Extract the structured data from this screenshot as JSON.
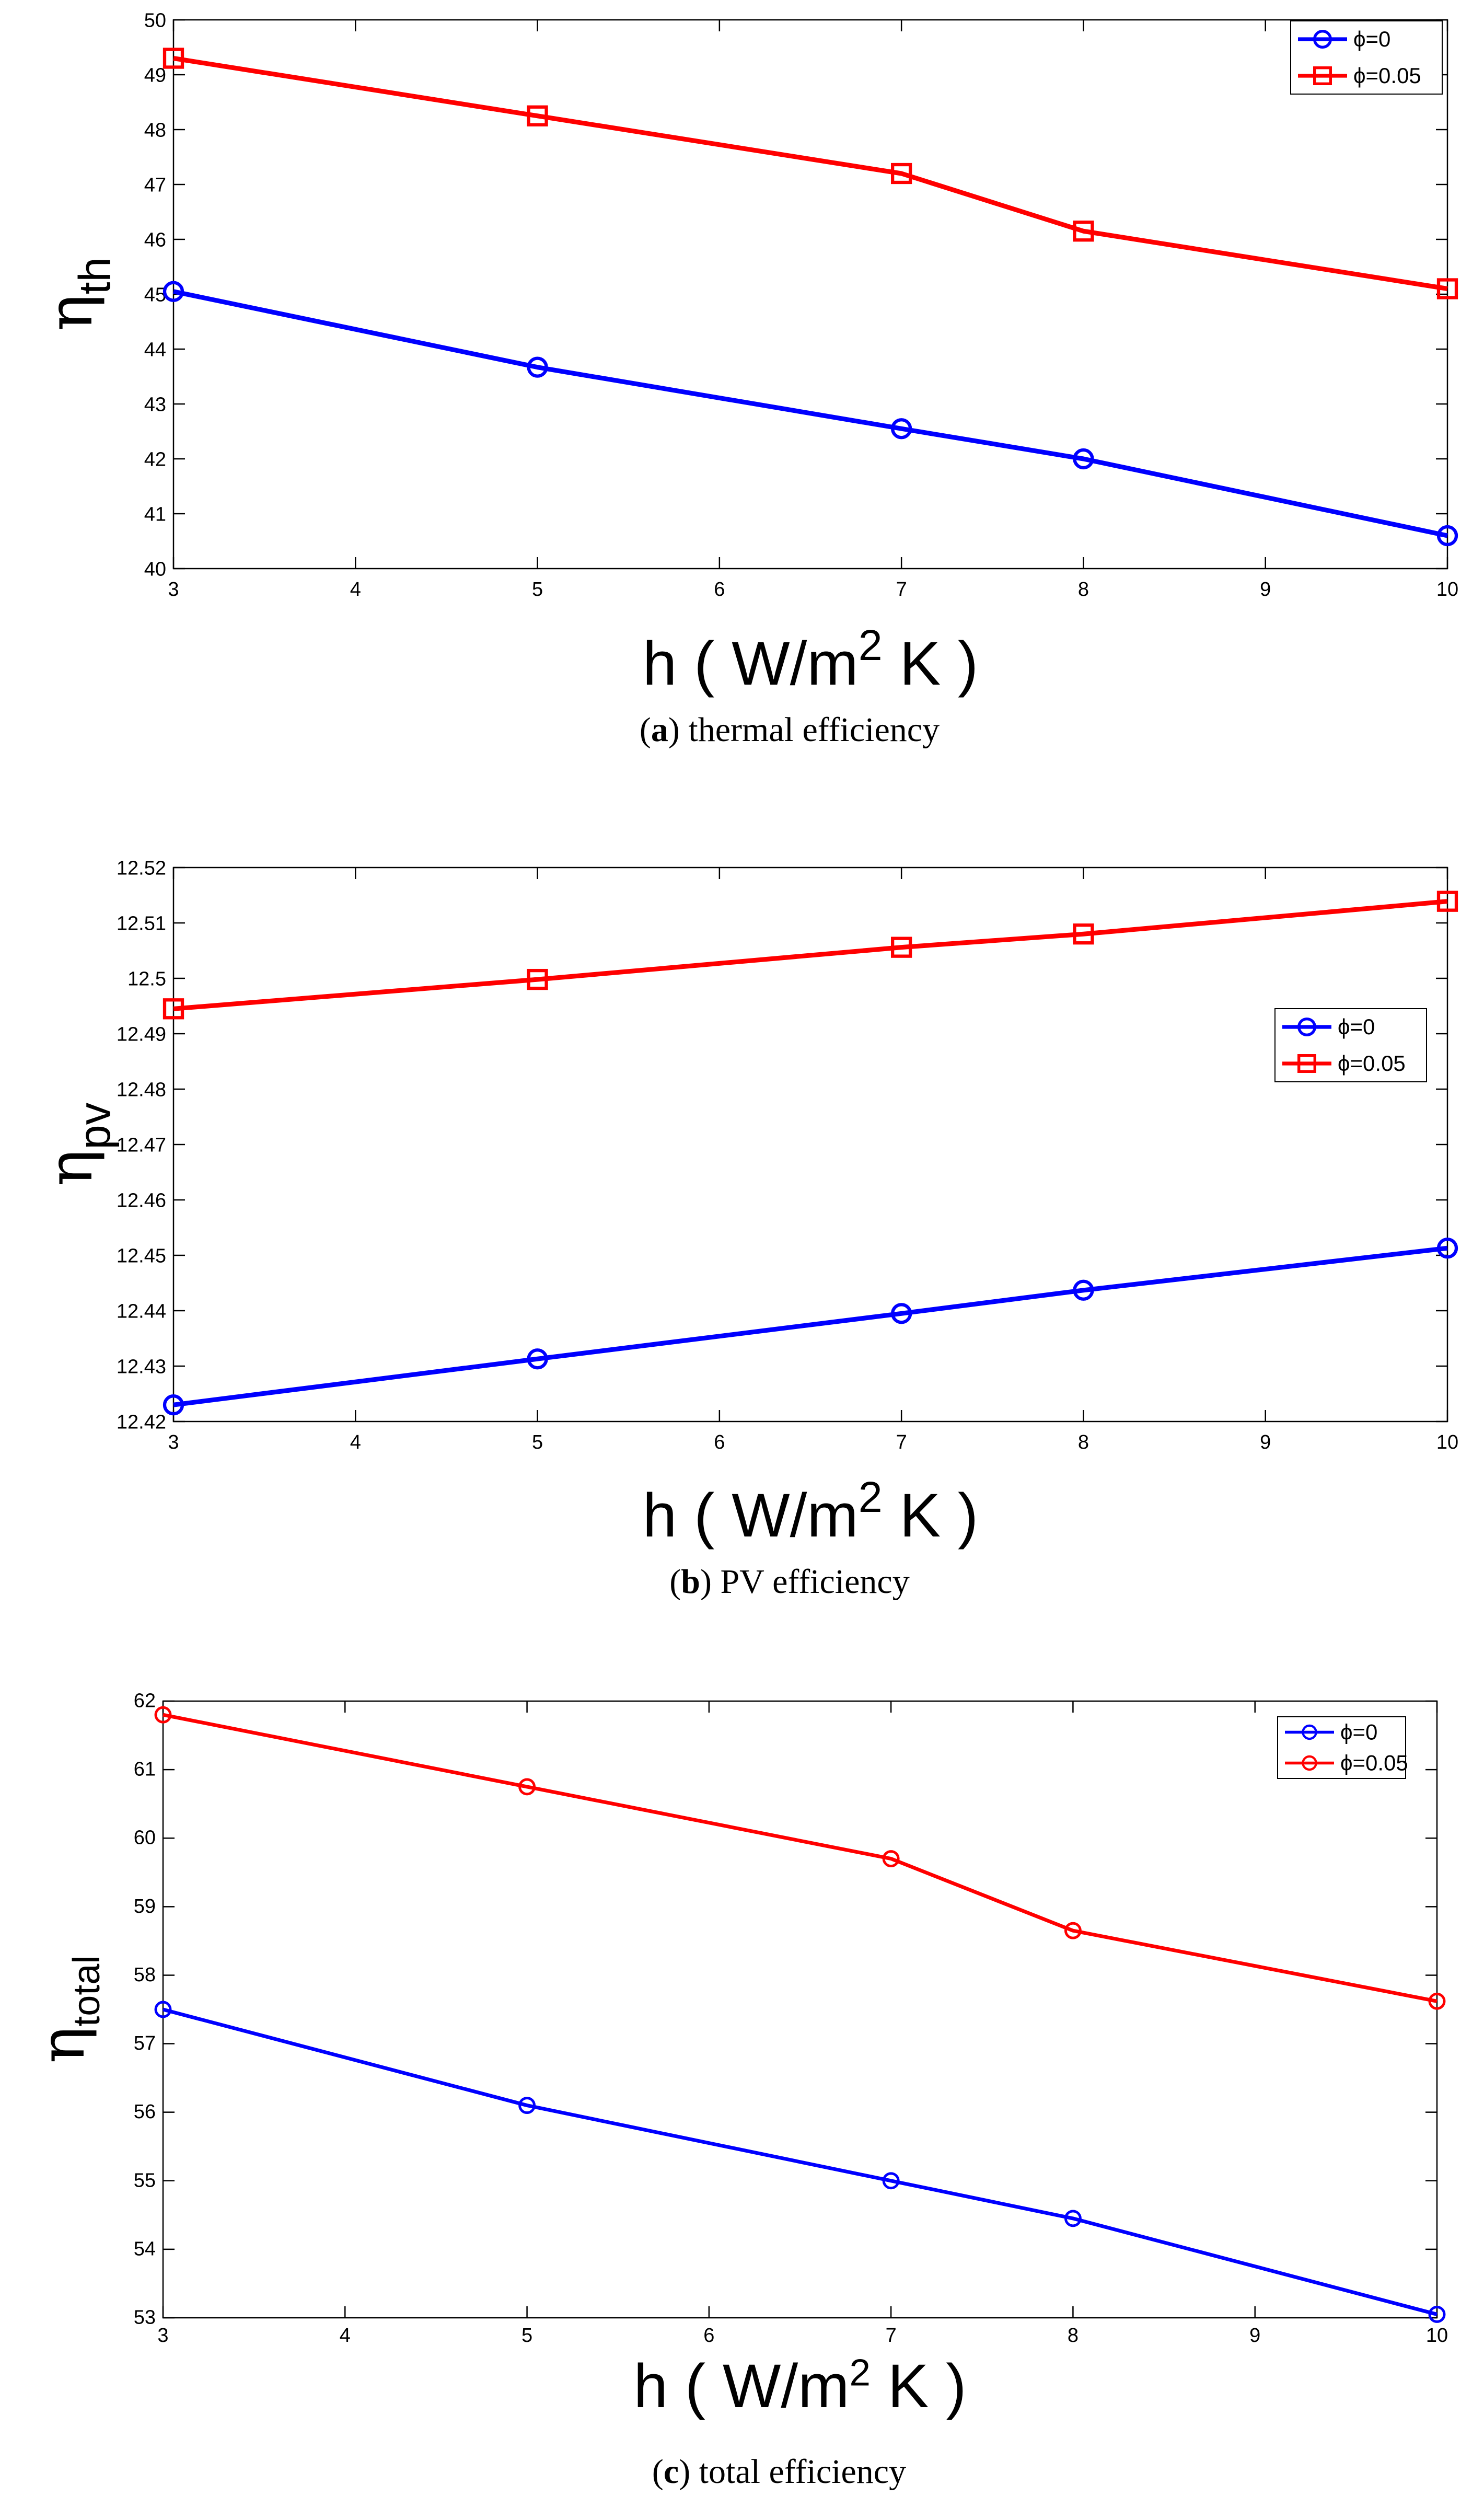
{
  "chart_data": [
    {
      "type": "line",
      "title": "",
      "caption": {
        "prefix": "(",
        "letter": "a",
        "suffix": ") ",
        "text": "thermal efficiency"
      },
      "xlabel": {
        "main": "h ( W/m",
        "sup": "2",
        "tail": " K )"
      },
      "ylabel": {
        "base": "η",
        "sub": "th"
      },
      "xlim": [
        3,
        10
      ],
      "ylim": [
        40,
        50
      ],
      "xticks": [
        "3",
        "4",
        "5",
        "6",
        "7",
        "8",
        "9",
        "10"
      ],
      "yticks": [
        "40",
        "41",
        "42",
        "43",
        "44",
        "45",
        "46",
        "47",
        "48",
        "49",
        "50"
      ],
      "x": [
        3,
        5,
        7,
        8,
        10
      ],
      "legend_position": "top-right",
      "series": [
        {
          "name": "ϕ=0",
          "color": "#0000ff",
          "marker": "circle",
          "values": [
            45.05,
            43.67,
            42.55,
            42.0,
            40.6
          ]
        },
        {
          "name": "ϕ=0.05",
          "color": "#ff0000",
          "marker": "square",
          "values": [
            49.3,
            48.25,
            47.2,
            46.15,
            45.1
          ]
        }
      ]
    },
    {
      "type": "line",
      "title": "",
      "caption": {
        "prefix": "(",
        "letter": "b",
        "suffix": ") ",
        "text": "PV efficiency"
      },
      "xlabel": {
        "main": "h ( W/m",
        "sup": "2",
        "tail": " K )"
      },
      "ylabel": {
        "base": "η",
        "sub": "pv"
      },
      "xlim": [
        3,
        10
      ],
      "ylim": [
        12.42,
        12.52
      ],
      "xticks": [
        "3",
        "4",
        "5",
        "6",
        "7",
        "8",
        "9",
        "10"
      ],
      "yticks": [
        "12.42",
        "12.43",
        "12.44",
        "12.45",
        "12.46",
        "12.47",
        "12.48",
        "12.49",
        "12.5",
        "12.51",
        "12.52"
      ],
      "x": [
        3,
        5,
        7,
        8,
        10
      ],
      "legend_position": "center-right",
      "series": [
        {
          "name": "ϕ=0",
          "color": "#0000ff",
          "marker": "circle",
          "values": [
            12.423,
            12.4313,
            12.4395,
            12.4437,
            12.4513
          ]
        },
        {
          "name": "ϕ=0.05",
          "color": "#ff0000",
          "marker": "square",
          "values": [
            12.4945,
            12.4998,
            12.5056,
            12.508,
            12.5139
          ]
        }
      ]
    },
    {
      "type": "line",
      "title": "",
      "caption": {
        "prefix": "(",
        "letter": "c",
        "suffix": ") ",
        "text": "total efficiency"
      },
      "xlabel": {
        "main": "h ( W/m",
        "sup": "2",
        "tail": " K )"
      },
      "ylabel": {
        "base": "η",
        "sub": "total"
      },
      "xlim": [
        3,
        10
      ],
      "ylim": [
        53,
        62
      ],
      "xticks": [
        "3",
        "4",
        "5",
        "6",
        "7",
        "8",
        "9",
        "10"
      ],
      "yticks": [
        "53",
        "54",
        "55",
        "56",
        "57",
        "58",
        "59",
        "60",
        "61",
        "62"
      ],
      "x": [
        3,
        5,
        7,
        8,
        10
      ],
      "legend_position": "top-right",
      "series": [
        {
          "name": "ϕ=0",
          "color": "#0000ff",
          "marker": "circle",
          "values": [
            57.5,
            56.1,
            55.0,
            54.45,
            53.05
          ]
        },
        {
          "name": "ϕ=0.05",
          "color": "#ff0000",
          "marker": "circle",
          "values": [
            61.8,
            60.75,
            59.7,
            58.65,
            57.62
          ]
        }
      ]
    }
  ]
}
